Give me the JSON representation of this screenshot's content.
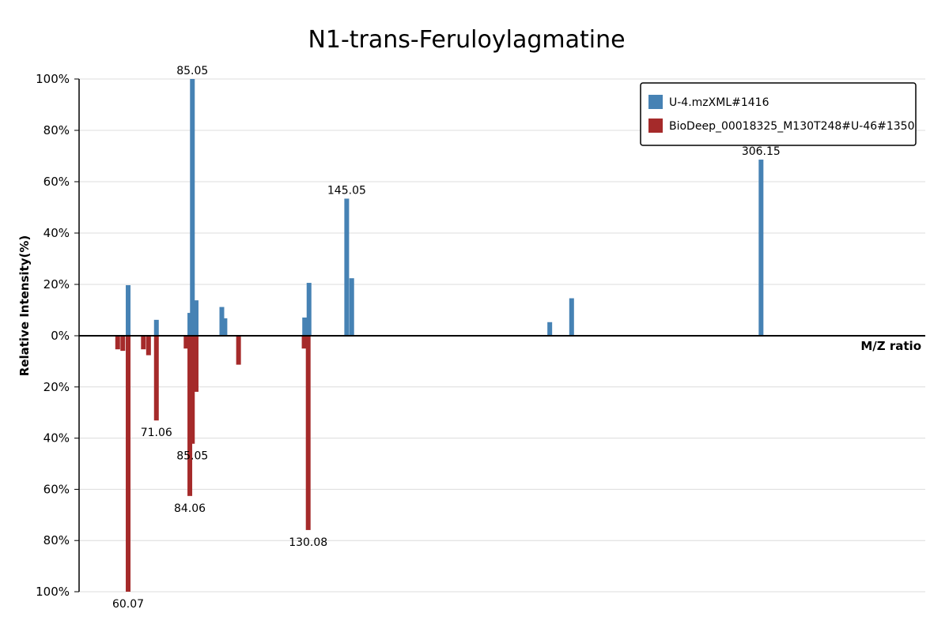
{
  "chart_data": {
    "type": "bar",
    "title": "N1-trans-Feruloylagmatine",
    "xlabel": "M/Z ratio",
    "ylabel": "Relative Intensity(%)",
    "xlim": [
      41,
      370
    ],
    "ylim_top": [
      0,
      100
    ],
    "ylim_bottom": [
      0,
      100
    ],
    "y_ticks_top": [
      "100%",
      "80%",
      "60%",
      "40%",
      "20%",
      "0%"
    ],
    "y_ticks_bottom": [
      "20%",
      "40%",
      "60%",
      "80%",
      "100%"
    ],
    "grid": true,
    "legend_position": "top-right",
    "colors": {
      "top": "#4682b4",
      "bottom": "#a52a2a"
    },
    "series": [
      {
        "name": "U-4.mzXML#1416",
        "direction": "up",
        "peaks": [
          {
            "mz": 60.07,
            "value": 19.7
          },
          {
            "mz": 71.06,
            "value": 6.2
          },
          {
            "mz": 84.06,
            "value": 8.9
          },
          {
            "mz": 85.05,
            "value": 100
          },
          {
            "mz": 86.5,
            "value": 13.8
          },
          {
            "mz": 96.5,
            "value": 11.2
          },
          {
            "mz": 97.7,
            "value": 6.8
          },
          {
            "mz": 128.7,
            "value": 7.1
          },
          {
            "mz": 130.4,
            "value": 20.6
          },
          {
            "mz": 145.05,
            "value": 53.4
          },
          {
            "mz": 147.0,
            "value": 22.4
          },
          {
            "mz": 224.0,
            "value": 5.3
          },
          {
            "mz": 232.5,
            "value": 14.6
          },
          {
            "mz": 306.15,
            "value": 68.6
          }
        ],
        "labels": [
          {
            "mz": 85.05,
            "text": "85.05"
          },
          {
            "mz": 145.05,
            "text": "145.05"
          },
          {
            "mz": 306.15,
            "text": "306.15"
          }
        ]
      },
      {
        "name": "BioDeep_00018325_M130T248#U-46#1350",
        "direction": "down",
        "peaks": [
          {
            "mz": 56.0,
            "value": 5.3
          },
          {
            "mz": 58.0,
            "value": 5.9
          },
          {
            "mz": 60.07,
            "value": 100
          },
          {
            "mz": 66.0,
            "value": 5.3
          },
          {
            "mz": 68.0,
            "value": 7.6
          },
          {
            "mz": 71.06,
            "value": 33.1
          },
          {
            "mz": 82.6,
            "value": 5.0
          },
          {
            "mz": 84.06,
            "value": 62.6
          },
          {
            "mz": 85.05,
            "value": 42.2
          },
          {
            "mz": 86.5,
            "value": 21.9
          },
          {
            "mz": 103.0,
            "value": 11.3
          },
          {
            "mz": 128.5,
            "value": 5.0
          },
          {
            "mz": 130.08,
            "value": 75.9
          }
        ],
        "labels": [
          {
            "mz": 60.07,
            "text": "60.07"
          },
          {
            "mz": 71.06,
            "text": "71.06"
          },
          {
            "mz": 85.05,
            "text": "85.05"
          },
          {
            "mz": 84.06,
            "text": "84.06"
          },
          {
            "mz": 130.08,
            "text": "130.08"
          }
        ]
      }
    ]
  }
}
